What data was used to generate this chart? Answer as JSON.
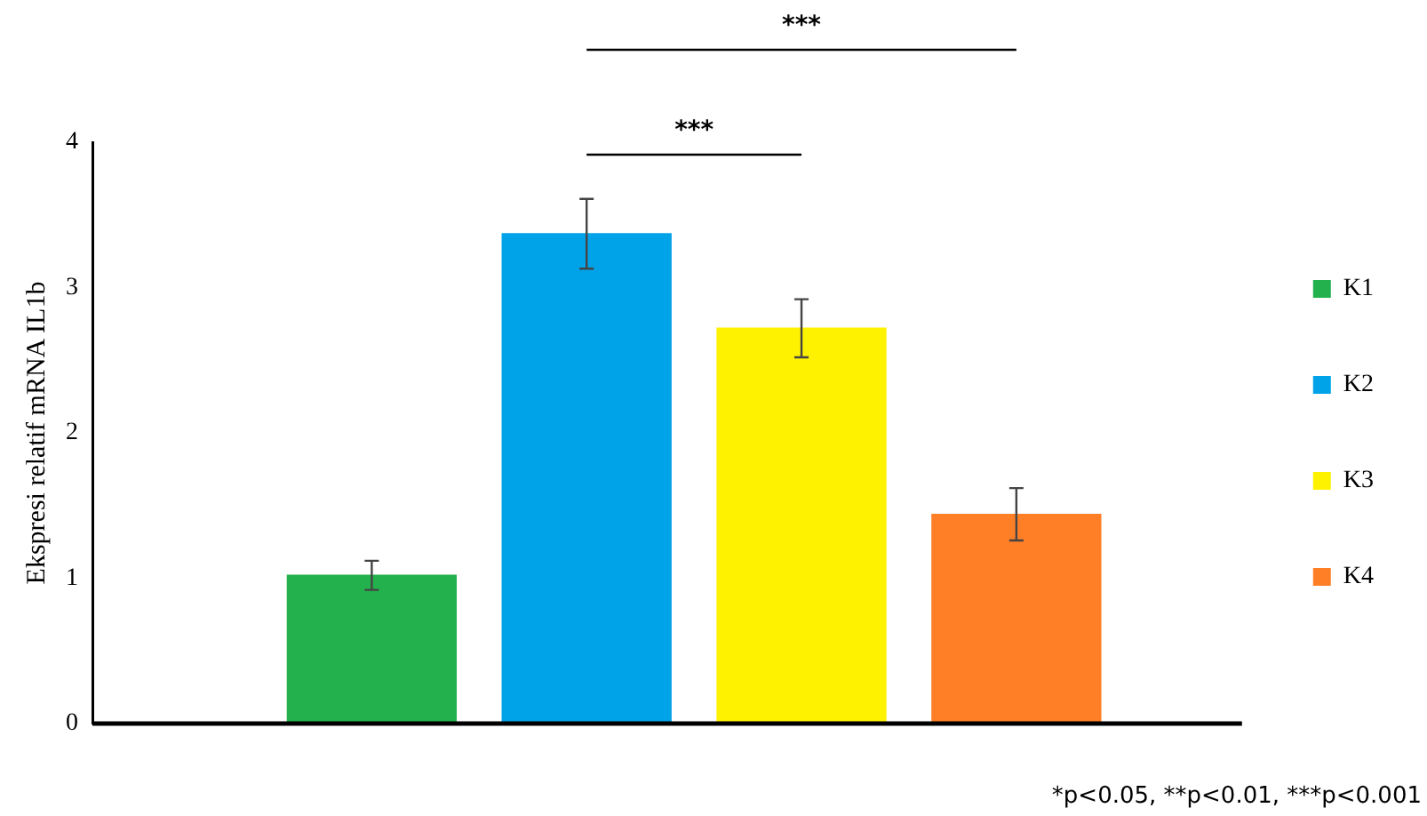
{
  "chart_data": {
    "type": "bar",
    "ylabel": "Ekspresi relatif mRNA IL1b",
    "categories": [
      null,
      null,
      null,
      null
    ],
    "series": [
      {
        "name": "K1",
        "color": "#22b14c",
        "values": [
          1.02,
          null,
          null,
          null
        ],
        "errors": [
          0.1,
          null,
          null,
          null
        ]
      },
      {
        "name": "K2",
        "color": "#00a2e8",
        "values": [
          null,
          3.37,
          null,
          null
        ],
        "errors": [
          null,
          0.24,
          null,
          null
        ]
      },
      {
        "name": "K3",
        "color": "#fff200",
        "values": [
          null,
          null,
          2.72,
          null
        ],
        "errors": [
          null,
          null,
          0.2,
          null
        ]
      },
      {
        "name": "K4",
        "color": "#ff7f27",
        "values": [
          null,
          null,
          null,
          1.44
        ],
        "errors": [
          null,
          null,
          null,
          0.18
        ]
      }
    ],
    "ylim": [
      0,
      4
    ],
    "yticks": [
      0,
      1,
      2,
      3,
      4
    ],
    "grid": false,
    "legend": "right",
    "annotations": [
      "***",
      "***",
      "*p<0.05, **p<0.01, ***p<0.001"
    ]
  }
}
